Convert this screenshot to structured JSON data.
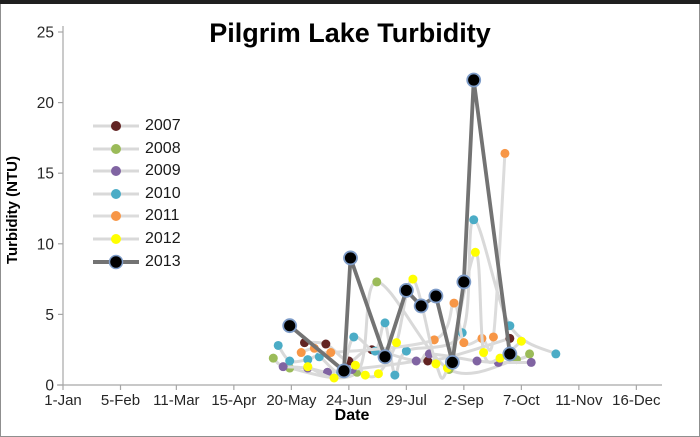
{
  "chart_data": {
    "type": "line",
    "title": "Pilgrim Lake Turbidity",
    "xlabel": "Date",
    "ylabel": "Turbidity (NTU)",
    "x_unit": "day-of-year",
    "y_unit": "NTU",
    "ylim": [
      0,
      25
    ],
    "y_ticks": [
      0,
      5,
      10,
      15,
      20,
      25
    ],
    "x_tick_days": [
      1,
      36,
      70,
      105,
      140,
      175,
      210,
      245,
      280,
      315,
      350
    ],
    "x_tick_labels": [
      "1-Jan",
      "5-Feb",
      "11-Mar",
      "15-Apr",
      "20-May",
      "24-Jun",
      "29-Jul",
      "2-Sep",
      "7-Oct",
      "11-Nov",
      "16-Dec"
    ],
    "grid": false,
    "legend_position": "inside-left",
    "axis_color": "#a6a6a6",
    "tick_label_color": "#262626",
    "series": [
      {
        "name": "2007",
        "color": "#622423",
        "line_color": "#d9d9d9",
        "smooth": true,
        "emphasis": false,
        "points": [
          [
            148,
            3.0
          ],
          [
            161,
            2.9
          ],
          [
            175,
            1.7
          ],
          [
            189,
            2.5
          ],
          [
            223,
            1.7
          ],
          [
            273,
            3.3
          ]
        ]
      },
      {
        "name": "2008",
        "color": "#9bbb59",
        "line_color": "#d9d9d9",
        "smooth": true,
        "emphasis": false,
        "points": [
          [
            129,
            1.9
          ],
          [
            139,
            1.2
          ],
          [
            180,
            0.9
          ],
          [
            192,
            7.3
          ],
          [
            236,
            1.1
          ],
          [
            277,
            1.8
          ],
          [
            285,
            2.2
          ]
        ]
      },
      {
        "name": "2009",
        "color": "#8064a2",
        "line_color": "#d9d9d9",
        "smooth": true,
        "emphasis": false,
        "points": [
          [
            135,
            1.3
          ],
          [
            150,
            1.2
          ],
          [
            162,
            0.9
          ],
          [
            177,
            1.1
          ],
          [
            216,
            1.7
          ],
          [
            224,
            2.2
          ],
          [
            253,
            1.7
          ],
          [
            266,
            1.6
          ],
          [
            286,
            1.6
          ]
        ]
      },
      {
        "name": "2010",
        "color": "#4bacc6",
        "line_color": "#d9d9d9",
        "smooth": true,
        "emphasis": false,
        "points": [
          [
            132,
            2.8
          ],
          [
            139,
            1.7
          ],
          [
            150,
            1.8
          ],
          [
            157,
            2.0
          ],
          [
            170,
            0.9
          ],
          [
            178,
            3.4
          ],
          [
            191,
            2.4
          ],
          [
            197,
            4.4
          ],
          [
            203,
            0.7
          ],
          [
            210,
            2.4
          ],
          [
            244,
            3.7
          ],
          [
            251,
            11.7
          ],
          [
            273,
            4.2
          ],
          [
            301,
            2.2
          ]
        ]
      },
      {
        "name": "2011",
        "color": "#f79646",
        "line_color": "#dcdcdc",
        "smooth": true,
        "emphasis": false,
        "points": [
          [
            146,
            2.3
          ],
          [
            154,
            2.6
          ],
          [
            164,
            2.3
          ],
          [
            227,
            3.2
          ],
          [
            239,
            5.8
          ],
          [
            245,
            3.0
          ],
          [
            256,
            3.3
          ],
          [
            263,
            3.4
          ],
          [
            270,
            16.4
          ]
        ]
      },
      {
        "name": "2012",
        "color": "#ffff00",
        "line_color": "#d9d9d9",
        "smooth": true,
        "emphasis": false,
        "points": [
          [
            150,
            1.3
          ],
          [
            166,
            0.5
          ],
          [
            179,
            1.4
          ],
          [
            185,
            0.7
          ],
          [
            193,
            0.8
          ],
          [
            204,
            3.0
          ],
          [
            214,
            7.5
          ],
          [
            228,
            1.5
          ],
          [
            235,
            1.2
          ],
          [
            252,
            9.4
          ],
          [
            257,
            2.3
          ],
          [
            267,
            1.9
          ],
          [
            280,
            3.1
          ]
        ]
      },
      {
        "name": "2013",
        "color": "#000000",
        "line_color": "#737373",
        "marker_stroke": "#7e9cc8",
        "smooth": false,
        "emphasis": true,
        "points": [
          [
            139,
            4.2
          ],
          [
            172,
            1.0
          ],
          [
            176,
            9.0
          ],
          [
            197,
            2.0
          ],
          [
            210,
            6.7
          ],
          [
            219,
            5.6
          ],
          [
            228,
            6.3
          ],
          [
            238,
            1.6
          ],
          [
            245,
            7.3
          ],
          [
            251,
            21.6
          ],
          [
            273,
            2.2
          ]
        ]
      }
    ]
  }
}
